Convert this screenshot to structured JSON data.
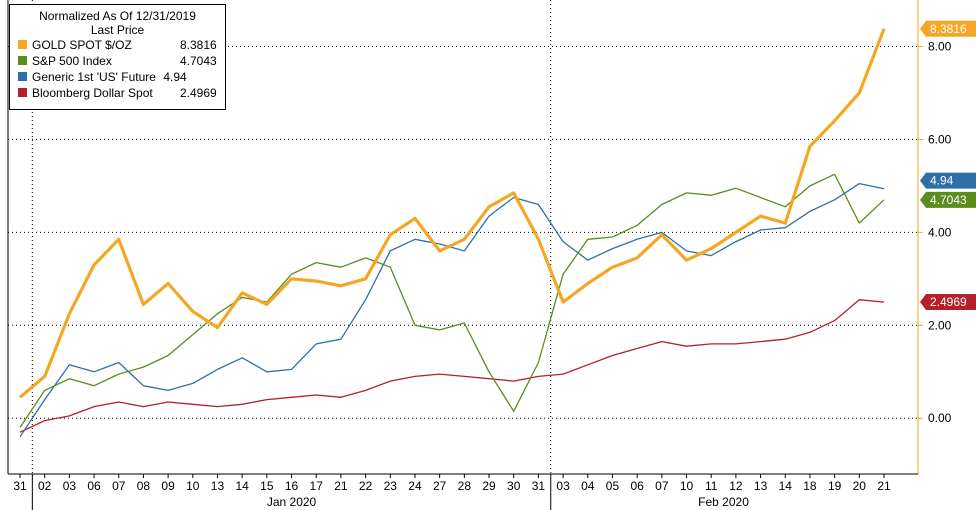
{
  "chart_data": {
    "type": "line",
    "title": "Normalized As Of 12/31/2019",
    "legend_header": "Last Price",
    "legend_placement": "top-left",
    "grid": true,
    "ylim": [
      -1.2,
      9.0
    ],
    "y_ticks": [
      "8.00",
      "6.00",
      "4.00",
      "2.00",
      "0.00"
    ],
    "y_tick_values": [
      8,
      6,
      4,
      2,
      0
    ],
    "x_labels": [
      "31",
      "02",
      "03",
      "06",
      "07",
      "08",
      "09",
      "10",
      "13",
      "14",
      "15",
      "16",
      "17",
      "21",
      "22",
      "23",
      "24",
      "27",
      "28",
      "29",
      "30",
      "31",
      "03",
      "04",
      "05",
      "06",
      "07",
      "10",
      "11",
      "12",
      "13",
      "14",
      "18",
      "19",
      "20",
      "21"
    ],
    "month_labels": [
      {
        "label": "Jan 2020",
        "from": 1,
        "to": 21
      },
      {
        "label": "Feb 2020",
        "from": 22,
        "to": 35
      }
    ],
    "series": [
      {
        "name": "GOLD SPOT $/OZ",
        "last": "8.3816",
        "color": "#f5a623",
        "width": 3.2,
        "values": [
          0.45,
          0.9,
          2.25,
          3.3,
          3.85,
          2.45,
          2.9,
          2.3,
          1.95,
          2.7,
          2.45,
          3.0,
          2.95,
          2.85,
          3.0,
          3.95,
          4.3,
          3.6,
          3.85,
          4.55,
          4.85,
          3.85,
          2.5,
          2.9,
          3.25,
          3.45,
          3.95,
          3.4,
          3.65,
          4.0,
          4.35,
          4.2,
          5.85,
          6.4,
          7.0,
          8.38
        ]
      },
      {
        "name": "S&P 500 Index",
        "last": "4.7043",
        "color": "#5b8c1e",
        "width": 1.3,
        "values": [
          -0.2,
          0.6,
          0.85,
          0.7,
          0.95,
          1.1,
          1.35,
          1.8,
          2.25,
          2.6,
          2.5,
          3.1,
          3.35,
          3.25,
          3.45,
          3.25,
          2.0,
          1.9,
          2.05,
          1.0,
          0.15,
          1.2,
          3.1,
          3.85,
          3.9,
          4.15,
          4.6,
          4.85,
          4.8,
          4.95,
          4.75,
          4.55,
          5.0,
          5.25,
          4.2,
          4.7
        ]
      },
      {
        "name": "Generic 1st 'US' Future",
        "last": "4.94",
        "color": "#2f6fa8",
        "width": 1.3,
        "values": [
          -0.4,
          0.4,
          1.15,
          1.0,
          1.2,
          0.7,
          0.6,
          0.75,
          1.05,
          1.3,
          1.0,
          1.05,
          1.6,
          1.7,
          2.55,
          3.6,
          3.85,
          3.75,
          3.6,
          4.35,
          4.75,
          4.6,
          3.8,
          3.4,
          3.65,
          3.85,
          4.0,
          3.6,
          3.5,
          3.8,
          4.05,
          4.1,
          4.45,
          4.7,
          5.05,
          4.94
        ]
      },
      {
        "name": "Bloomberg Dollar Spot",
        "last": "2.4969",
        "color": "#b3202b",
        "width": 1.3,
        "values": [
          -0.3,
          -0.05,
          0.05,
          0.25,
          0.35,
          0.25,
          0.35,
          0.3,
          0.25,
          0.3,
          0.4,
          0.45,
          0.5,
          0.45,
          0.6,
          0.8,
          0.9,
          0.95,
          0.9,
          0.85,
          0.8,
          0.9,
          0.95,
          1.15,
          1.35,
          1.5,
          1.65,
          1.55,
          1.6,
          1.6,
          1.65,
          1.7,
          1.85,
          2.1,
          2.55,
          2.5
        ]
      }
    ]
  }
}
